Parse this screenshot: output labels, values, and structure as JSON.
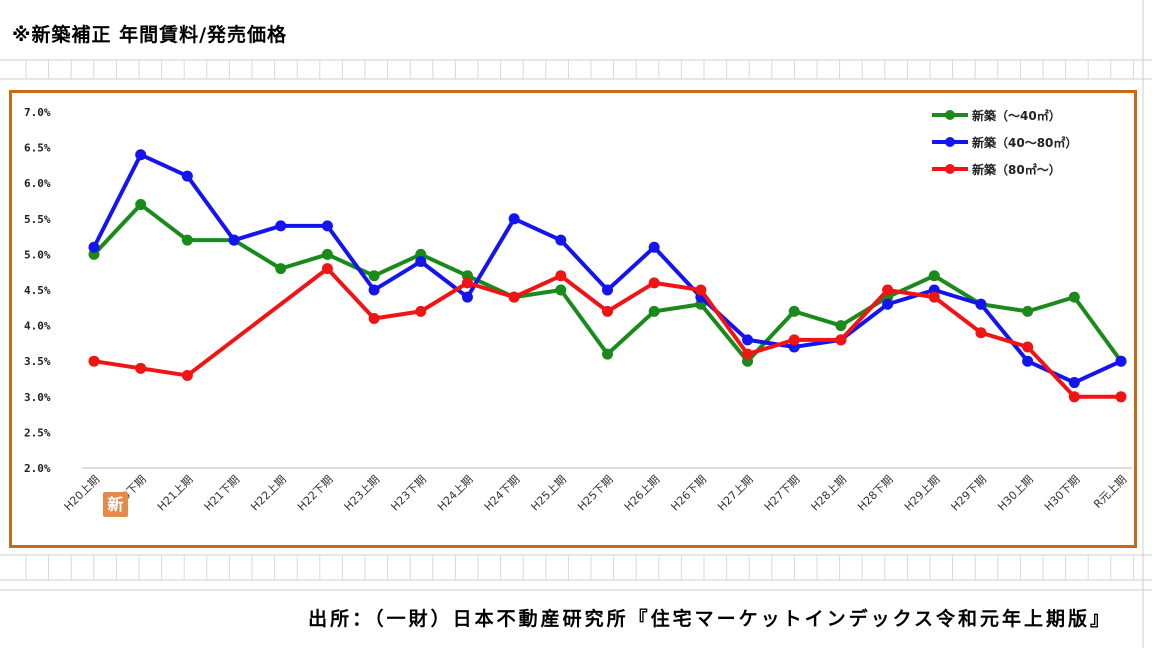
{
  "header": {
    "title": "※新築補正 年間賃料/発売価格"
  },
  "footer": {
    "source": "出所：（一財）日本不動産研究所『住宅マーケットインデックス令和元年上期版』"
  },
  "badge": {
    "text": "新",
    "color": "#e58a4a"
  },
  "colors": {
    "frame": "#c56a17",
    "green": "#1a8a1a",
    "blue": "#1414f0",
    "red": "#f01414"
  },
  "chart_data": {
    "type": "line",
    "title": "",
    "xlabel": "",
    "ylabel": "",
    "ylim": [
      2.0,
      7.0
    ],
    "yticks": [
      "7.0%",
      "6.5%",
      "6.0%",
      "5.5%",
      "5.0%",
      "4.5%",
      "4.0%",
      "3.5%",
      "3.0%",
      "2.5%",
      "2.0%"
    ],
    "grid": false,
    "legend_position": "top-right",
    "categories": [
      "H20上期",
      "H20下期",
      "H21上期",
      "H21下期",
      "H22上期",
      "H22下期",
      "H23上期",
      "H23下期",
      "H24上期",
      "H24下期",
      "H25上期",
      "H25下期",
      "H26上期",
      "H26下期",
      "H27上期",
      "H27下期",
      "H28上期",
      "H28下期",
      "H29上期",
      "H29下期",
      "H30上期",
      "H30下期",
      "R元上期"
    ],
    "series": [
      {
        "name": "新築（～40㎡）",
        "color": "#1a8a1a",
        "values": [
          5.0,
          5.7,
          5.2,
          5.2,
          4.8,
          5.0,
          4.7,
          5.0,
          4.7,
          4.4,
          4.5,
          3.6,
          4.2,
          4.3,
          3.5,
          4.2,
          4.0,
          4.4,
          4.7,
          4.3,
          4.2,
          4.4,
          3.5
        ]
      },
      {
        "name": "新築（40～80㎡）",
        "color": "#1414f0",
        "values": [
          5.1,
          6.4,
          6.1,
          5.2,
          5.4,
          5.4,
          4.5,
          4.9,
          4.4,
          5.5,
          5.2,
          4.5,
          5.1,
          4.4,
          3.8,
          3.7,
          3.8,
          4.3,
          4.5,
          4.3,
          3.5,
          3.2,
          3.5
        ]
      },
      {
        "name": "新築（80㎡～）",
        "color": "#f01414",
        "values": [
          3.5,
          3.4,
          3.3,
          null,
          null,
          4.8,
          4.1,
          4.2,
          4.6,
          4.4,
          4.7,
          4.2,
          4.6,
          4.5,
          3.6,
          3.8,
          3.8,
          4.5,
          4.4,
          3.9,
          3.7,
          3.0,
          3.0
        ]
      }
    ]
  }
}
